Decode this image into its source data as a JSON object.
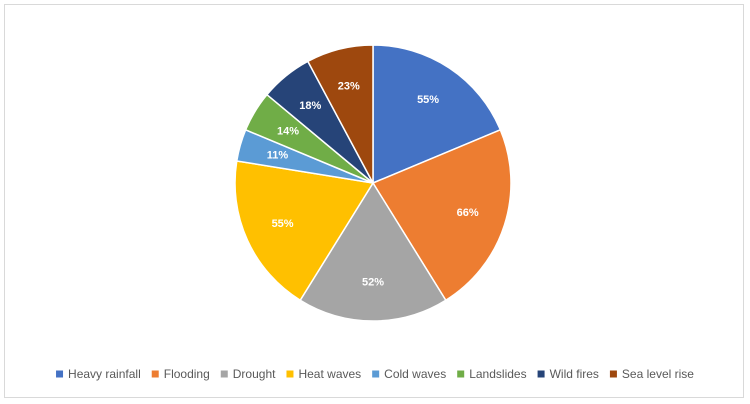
{
  "chart_data": {
    "type": "pie",
    "title": "",
    "categories": [
      "Heavy rainfall",
      "Flooding",
      "Drought",
      "Heat waves",
      "Cold waves",
      "Landslides",
      "Wild fires",
      "Sea level rise"
    ],
    "values": [
      55,
      66,
      52,
      55,
      11,
      14,
      18,
      23
    ],
    "labels": [
      "55%",
      "66%",
      "52%",
      "55%",
      "11%",
      "14%",
      "18%",
      "23%"
    ],
    "colors": [
      "#4472C4",
      "#ED7D31",
      "#A5A5A5",
      "#FFC000",
      "#5B9BD5",
      "#70AD47",
      "#264478",
      "#9E480E"
    ],
    "legend_position": "bottom",
    "start_angle": "12 o'clock",
    "direction": "clockwise"
  }
}
